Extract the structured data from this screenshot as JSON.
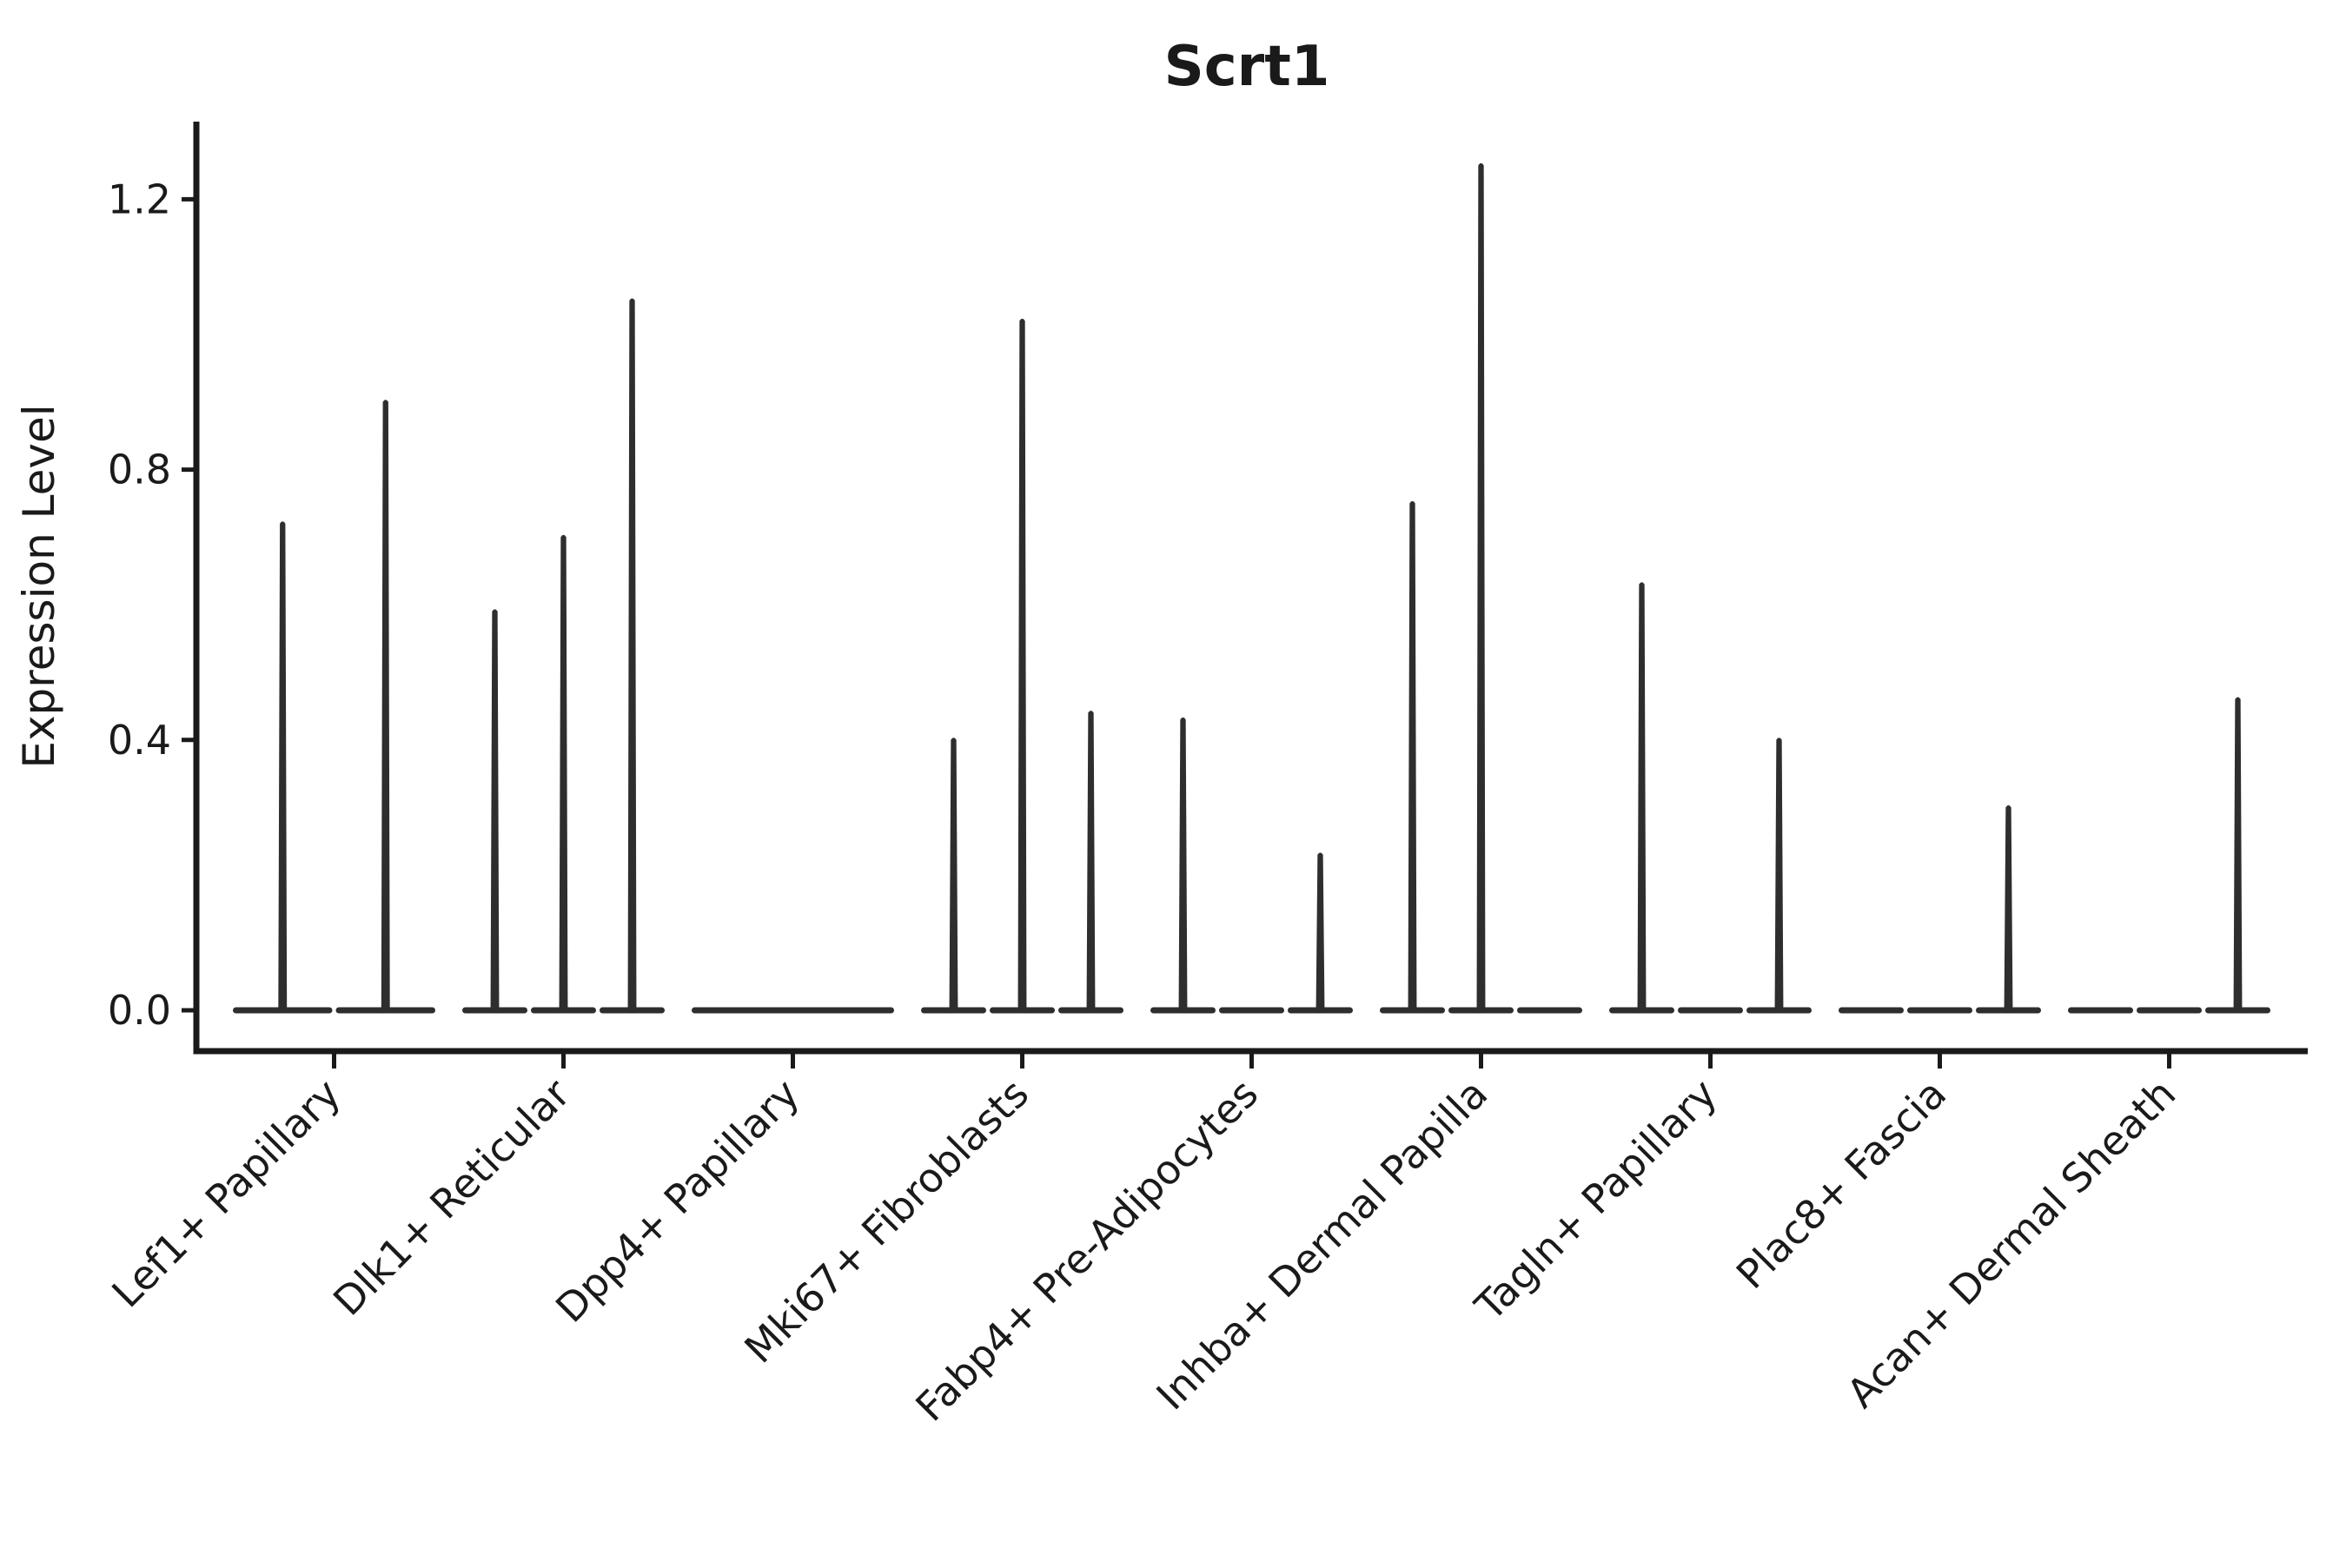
{
  "title": "Scrt1",
  "axes": {
    "ylabel": "Expression Level",
    "ytick_labels": [
      "0.0",
      "0.4",
      "0.8",
      "1.2"
    ]
  },
  "colors": {
    "ink": "#1a1a1a",
    "violin": "#2e2e2e",
    "background": "#ffffff"
  },
  "chart_data": {
    "type": "violin",
    "title": "Scrt1",
    "xlabel": "",
    "ylabel": "Expression Level",
    "ylim": [
      0,
      1.31
    ],
    "yticks": [
      0.0,
      0.4,
      0.8,
      1.2
    ],
    "grid": false,
    "legend": "none",
    "description": "Violin plot of Scrt1 expression per fibroblast cell type; violins are collapsed flat at 0 with thin density spikes; several categories contain multiple sub-violins",
    "categories": [
      "Lef1+ Papillary",
      "Dlk1+ Reticular",
      "Dpp4+ Papillary",
      "Mki67+ Fibroblasts",
      "Fabp4+ Pre-Adipocytes",
      "Inhba+ Dermal Papilla",
      "Tagln+ Papillary",
      "Plac8+ Fascia",
      "Acan+ Dermal Sheath"
    ],
    "series": [
      {
        "label": "Lef1+ Papillary",
        "n_violins": 2,
        "spikes": [
          {
            "slot": 1,
            "value": 0.72
          },
          {
            "slot": 2,
            "value": 0.9
          }
        ]
      },
      {
        "label": "Dlk1+ Reticular",
        "n_violins": 3,
        "spikes": [
          {
            "slot": 1,
            "value": 0.59
          },
          {
            "slot": 2,
            "value": 0.7
          },
          {
            "slot": 3,
            "value": 1.05
          }
        ]
      },
      {
        "label": "Dpp4+ Papillary",
        "n_violins": 1,
        "spikes": []
      },
      {
        "label": "Mki67+ Fibroblasts",
        "n_violins": 3,
        "spikes": [
          {
            "slot": 1,
            "value": 0.4
          },
          {
            "slot": 2,
            "value": 1.02
          },
          {
            "slot": 3,
            "value": 0.44
          }
        ]
      },
      {
        "label": "Fabp4+ Pre-Adipocytes",
        "n_violins": 3,
        "spikes": [
          {
            "slot": 1,
            "value": 0.43
          },
          {
            "slot": 3,
            "value": 0.23
          }
        ]
      },
      {
        "label": "Inhba+ Dermal Papilla",
        "n_violins": 3,
        "spikes": [
          {
            "slot": 1,
            "value": 0.75
          },
          {
            "slot": 2,
            "value": 1.25
          }
        ]
      },
      {
        "label": "Tagln+ Papillary",
        "n_violins": 3,
        "spikes": [
          {
            "slot": 1,
            "value": 0.63
          },
          {
            "slot": 3,
            "value": 0.4
          }
        ]
      },
      {
        "label": "Plac8+ Fascia",
        "n_violins": 3,
        "spikes": [
          {
            "slot": 3,
            "value": 0.3
          }
        ]
      },
      {
        "label": "Acan+ Dermal Sheath",
        "n_violins": 3,
        "spikes": [
          {
            "slot": 3,
            "value": 0.46
          }
        ]
      }
    ]
  }
}
